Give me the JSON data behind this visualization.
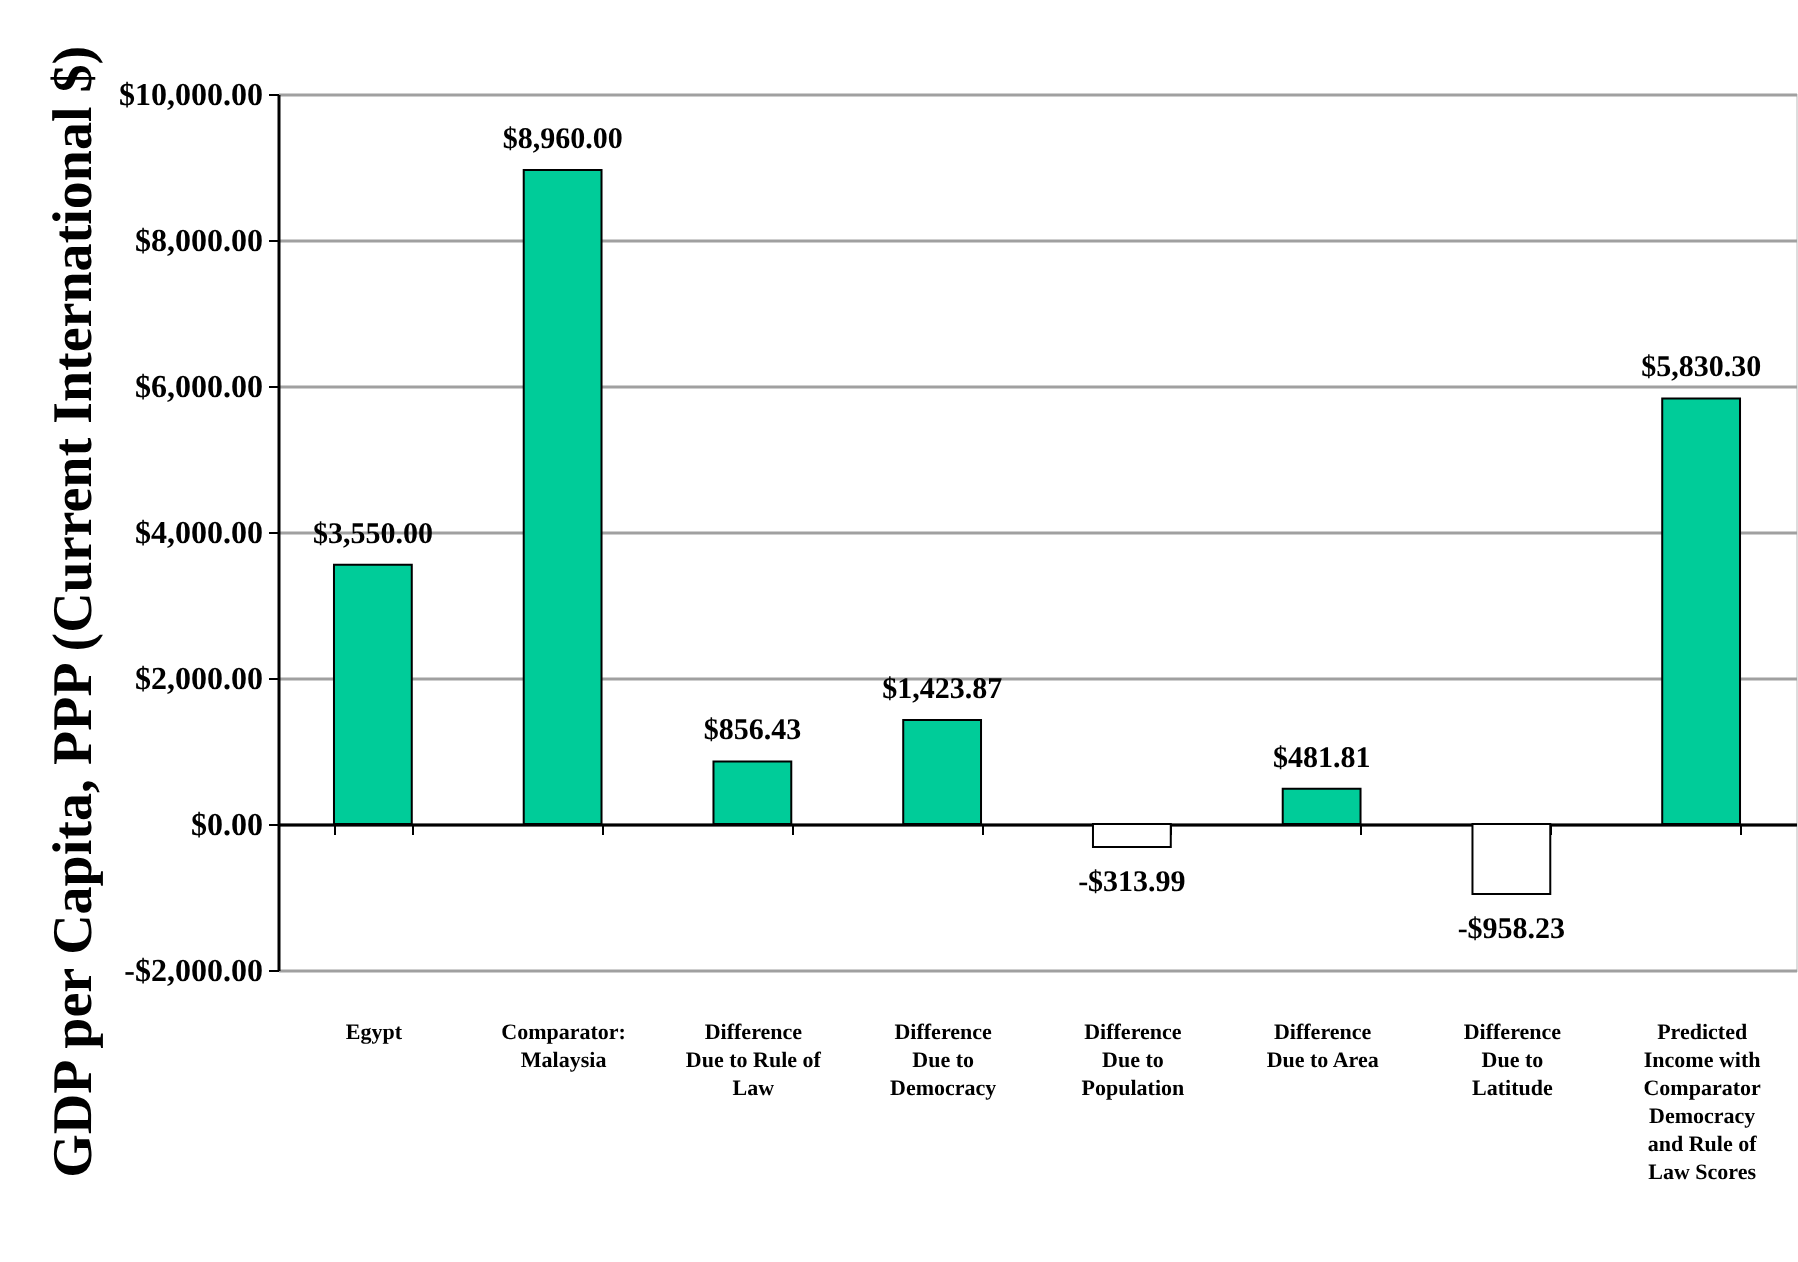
{
  "chart_data": {
    "type": "bar",
    "ylabel": "GDP per Capita, PPP (Current International $)",
    "categories": [
      "Egypt",
      "Comparator: Malaysia",
      "Difference Due to Rule of Law",
      "Difference Due to Democracy",
      "Difference Due to Population",
      "Difference Due to Area",
      "Difference Due to Latitude",
      "Predicted Income with Comparator Democracy and Rule of Law Scores"
    ],
    "values": [
      3550,
      8960,
      856.43,
      1423.87,
      -313.99,
      481.81,
      -958.23,
      5830.3
    ],
    "colors": [
      "#00cc99",
      "#00cc99",
      "#00cc99",
      "#00cc99",
      "#ffffff",
      "#00cc99",
      "#ffffff",
      "#00cc99"
    ],
    "value_labels": [
      "$3,550.00",
      "$8,960.00",
      "$856.43",
      "$1,423.87",
      "-$313.99",
      "$481.81",
      "-$958.23",
      "$5,830.30"
    ],
    "ylim": [
      -2000,
      10000
    ],
    "yticks": [
      {
        "value": -2000,
        "label": "-$2,000.00"
      },
      {
        "value": 0,
        "label": "$0.00"
      },
      {
        "value": 2000,
        "label": "$2,000.00"
      },
      {
        "value": 4000,
        "label": "$4,000.00"
      },
      {
        "value": 6000,
        "label": "$6,000.00"
      },
      {
        "value": 8000,
        "label": "$8,000.00"
      },
      {
        "value": 10000,
        "label": "$10,000.00"
      }
    ],
    "grid": "y"
  }
}
